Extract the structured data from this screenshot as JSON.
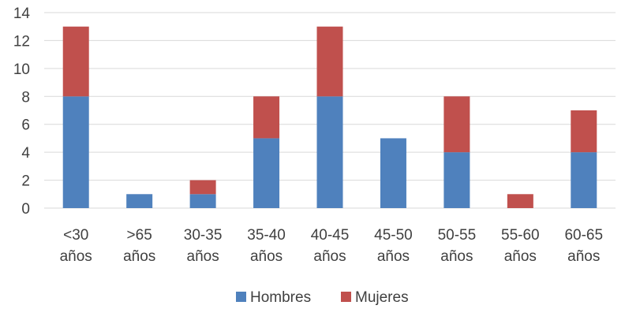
{
  "chart_data": {
    "type": "bar",
    "stacked": true,
    "categories": [
      [
        "<30",
        "años"
      ],
      [
        ">65",
        "años"
      ],
      [
        "30-35",
        "años"
      ],
      [
        "35-40",
        "años"
      ],
      [
        "40-45",
        "años"
      ],
      [
        "45-50",
        "años"
      ],
      [
        "50-55",
        "años"
      ],
      [
        "55-60",
        "años"
      ],
      [
        "60-65",
        "años"
      ]
    ],
    "series": [
      {
        "name": "Hombres",
        "color": "#4f81bd",
        "values": [
          8,
          1,
          1,
          5,
          8,
          5,
          4,
          0,
          4
        ]
      },
      {
        "name": "Mujeres",
        "color": "#c0504d",
        "values": [
          5,
          0,
          1,
          3,
          5,
          0,
          4,
          1,
          3
        ]
      }
    ],
    "yticks": [
      0,
      2,
      4,
      6,
      8,
      10,
      12,
      14
    ],
    "ylim": [
      0,
      14
    ],
    "grid": true,
    "legend": "bottom"
  }
}
